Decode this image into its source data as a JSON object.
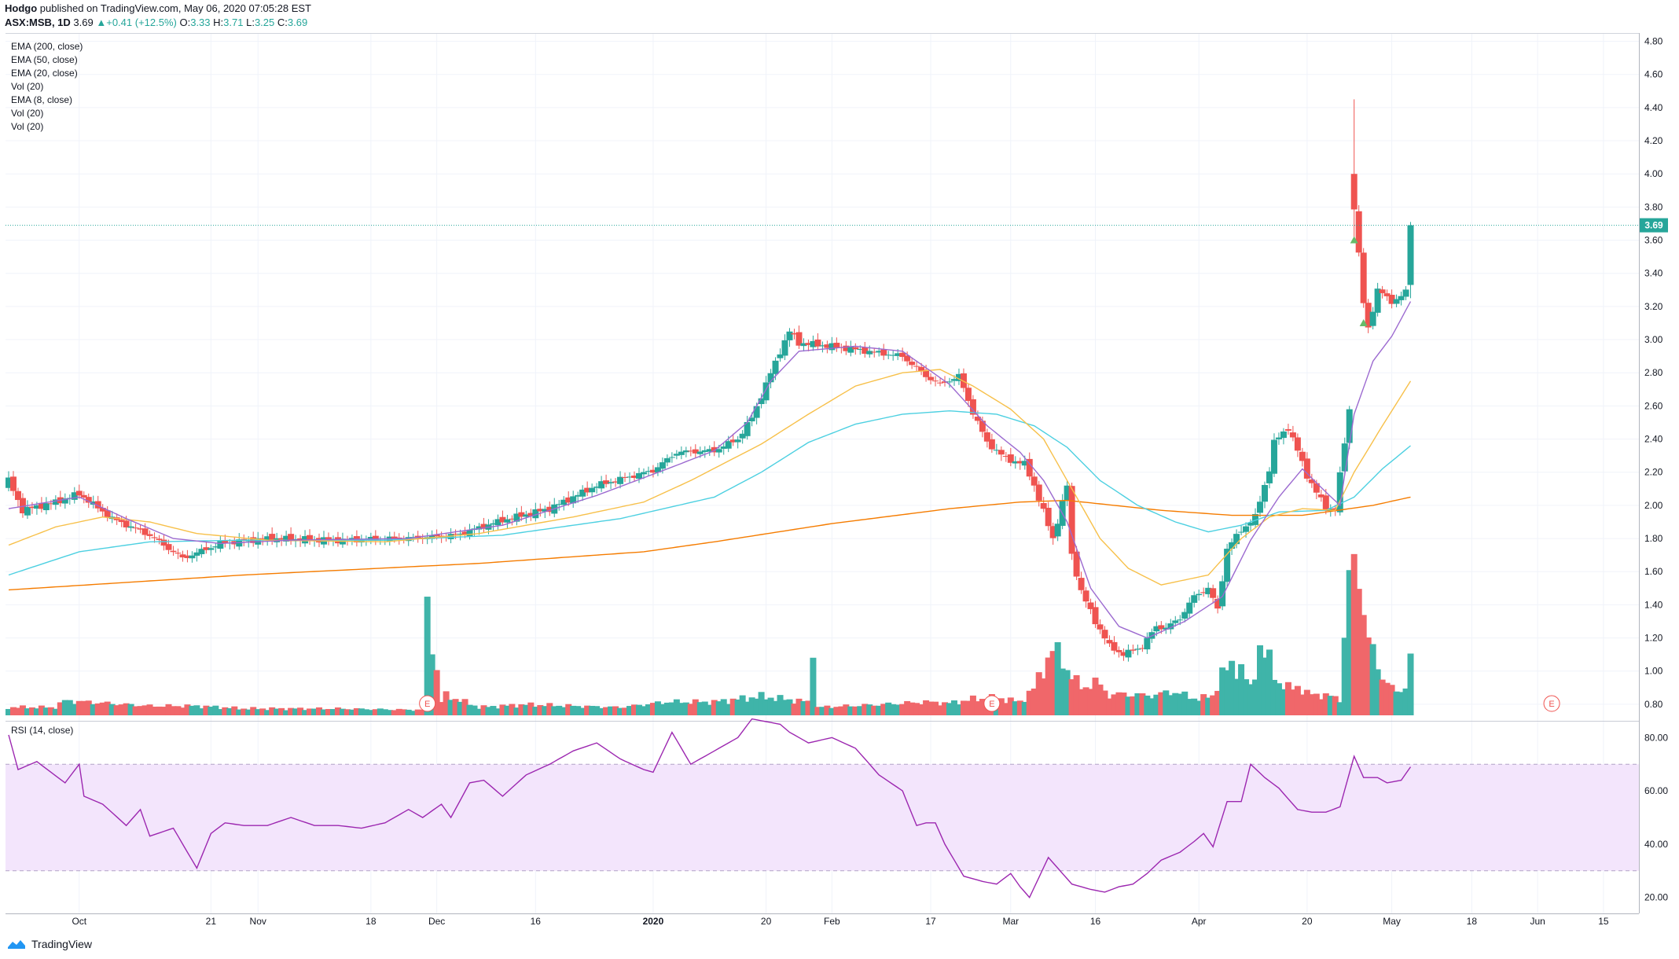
{
  "header": {
    "user": "Hodgo",
    "published": "published on TradingView.com, May 06, 2020 07:05:28 EST",
    "symbol": "ASX:MSB, 1D",
    "last": "3.69",
    "arrow": "▲",
    "change": "+0.41 (+12.5%)",
    "o_label": "O:",
    "o": "3.33",
    "h_label": "H:",
    "h": "3.71",
    "l_label": "L:",
    "l": "3.25",
    "c_label": "C:",
    "c": "3.69"
  },
  "legend": [
    "EMA (200, close)",
    "EMA (50, close)",
    "EMA (20, close)",
    "Vol (20)",
    "EMA (8, close)",
    "Vol (20)",
    "Vol (20)"
  ],
  "rsi_label": "RSI (14, close)",
  "footer": {
    "brand": "TradingView",
    "logo_icon": "tradingview-logo-icon"
  },
  "colors": {
    "up": "#26a69a",
    "down": "#ef5350",
    "ema200": "#f57c00",
    "ema50": "#4dd0e1",
    "ema20": "#f7c04a",
    "ema8": "#9c6ad0",
    "rsi": "#9c27b0",
    "rsi_band": "#f3e5fc",
    "last_price_line": "#26a69a"
  },
  "chart_data": {
    "type": "candlestick",
    "symbol": "ASX:MSB",
    "interval": "1D",
    "x_start": "2019-09-10",
    "price_axis": {
      "range": [
        0.7,
        4.85
      ],
      "ticks": [
        "0.80",
        "1.00",
        "1.20",
        "1.40",
        "1.60",
        "1.80",
        "2.00",
        "2.20",
        "2.40",
        "2.60",
        "2.80",
        "3.00",
        "3.20",
        "3.40",
        "3.60",
        "3.80",
        "4.00",
        "4.20",
        "4.40",
        "4.60",
        "4.80"
      ]
    },
    "last_price_label": "3.69",
    "x_ticks": [
      {
        "label": "Oct",
        "day": 15
      },
      {
        "label": "21",
        "day": 43
      },
      {
        "label": "Nov",
        "day": 53
      },
      {
        "label": "18",
        "day": 77
      },
      {
        "label": "Dec",
        "day": 91
      },
      {
        "label": "16",
        "day": 112
      },
      {
        "label": "2020",
        "day": 137
      },
      {
        "label": "20",
        "day": 161
      },
      {
        "label": "Feb",
        "day": 175
      },
      {
        "label": "17",
        "day": 196
      },
      {
        "label": "Mar",
        "day": 213
      },
      {
        "label": "16",
        "day": 231
      },
      {
        "label": "Apr",
        "day": 253
      },
      {
        "label": "20",
        "day": 276
      },
      {
        "label": "May",
        "day": 294
      },
      {
        "label": "18",
        "day": 311
      },
      {
        "label": "Jun",
        "day": 325
      },
      {
        "label": "15",
        "day": 339
      }
    ],
    "earnings_markers": [
      {
        "label": "E",
        "day": 89
      },
      {
        "label": "E",
        "day": 209
      },
      {
        "label": "E",
        "day": 328
      }
    ],
    "signal_markers": [
      {
        "day": 286,
        "price": 3.6
      },
      {
        "day": 288,
        "price": 3.1
      }
    ],
    "key_points": {
      "close": [
        [
          0,
          2.15
        ],
        [
          3,
          1.97
        ],
        [
          10,
          2.02
        ],
        [
          15,
          2.07
        ],
        [
          22,
          1.92
        ],
        [
          30,
          1.82
        ],
        [
          37,
          1.68
        ],
        [
          45,
          1.77
        ],
        [
          55,
          1.8
        ],
        [
          70,
          1.79
        ],
        [
          85,
          1.8
        ],
        [
          95,
          1.82
        ],
        [
          105,
          1.91
        ],
        [
          115,
          1.98
        ],
        [
          125,
          2.12
        ],
        [
          137,
          2.21
        ],
        [
          142,
          2.32
        ],
        [
          150,
          2.33
        ],
        [
          155,
          2.4
        ],
        [
          158,
          2.53
        ],
        [
          161,
          2.73
        ],
        [
          164,
          2.93
        ],
        [
          166,
          3.05
        ],
        [
          168,
          2.98
        ],
        [
          175,
          2.96
        ],
        [
          185,
          2.92
        ],
        [
          190,
          2.9
        ],
        [
          195,
          2.78
        ],
        [
          198,
          2.73
        ],
        [
          202,
          2.78
        ],
        [
          205,
          2.56
        ],
        [
          208,
          2.38
        ],
        [
          212,
          2.28
        ],
        [
          216,
          2.25
        ],
        [
          218,
          2.12
        ],
        [
          222,
          1.8
        ],
        [
          225,
          2.12
        ],
        [
          226,
          1.7
        ],
        [
          228,
          1.48
        ],
        [
          231,
          1.3
        ],
        [
          234,
          1.15
        ],
        [
          237,
          1.1
        ],
        [
          241,
          1.15
        ],
        [
          244,
          1.27
        ],
        [
          246,
          1.26
        ],
        [
          249,
          1.32
        ],
        [
          252,
          1.45
        ],
        [
          255,
          1.5
        ],
        [
          257,
          1.37
        ],
        [
          259,
          1.74
        ],
        [
          262,
          1.85
        ],
        [
          265,
          1.93
        ],
        [
          268,
          2.22
        ],
        [
          269,
          2.38
        ],
        [
          272,
          2.47
        ],
        [
          274,
          2.33
        ],
        [
          276,
          2.18
        ],
        [
          280,
          1.98
        ],
        [
          282,
          1.98
        ],
        [
          285,
          2.58
        ],
        [
          286,
          3.8
        ],
        [
          288,
          3.22
        ],
        [
          289,
          3.07
        ],
        [
          291,
          3.3
        ],
        [
          294,
          3.23
        ],
        [
          296,
          3.26
        ],
        [
          297,
          3.29
        ],
        [
          298,
          3.69
        ]
      ],
      "volume": [
        [
          0,
          0.06
        ],
        [
          10,
          0.06
        ],
        [
          12,
          0.11
        ],
        [
          30,
          0.07
        ],
        [
          40,
          0.07
        ],
        [
          50,
          0.05
        ],
        [
          70,
          0.05
        ],
        [
          88,
          0.04
        ],
        [
          89,
          0.8
        ],
        [
          92,
          0.1
        ],
        [
          93,
          0.15
        ],
        [
          100,
          0.06
        ],
        [
          110,
          0.08
        ],
        [
          120,
          0.07
        ],
        [
          130,
          0.06
        ],
        [
          140,
          0.1
        ],
        [
          150,
          0.1
        ],
        [
          160,
          0.14
        ],
        [
          170,
          0.1
        ],
        [
          171,
          0.55
        ],
        [
          172,
          0.06
        ],
        [
          185,
          0.08
        ],
        [
          195,
          0.1
        ],
        [
          200,
          0.09
        ],
        [
          205,
          0.12
        ],
        [
          210,
          0.13
        ],
        [
          215,
          0.1
        ],
        [
          218,
          0.2
        ],
        [
          220,
          0.35
        ],
        [
          222,
          0.5
        ],
        [
          225,
          0.35
        ],
        [
          228,
          0.2
        ],
        [
          231,
          0.25
        ],
        [
          234,
          0.15
        ],
        [
          237,
          0.16
        ],
        [
          241,
          0.15
        ],
        [
          244,
          0.15
        ],
        [
          247,
          0.18
        ],
        [
          250,
          0.15
        ],
        [
          253,
          0.12
        ],
        [
          256,
          0.15
        ],
        [
          258,
          0.3
        ],
        [
          260,
          0.38
        ],
        [
          262,
          0.34
        ],
        [
          264,
          0.2
        ],
        [
          266,
          0.5
        ],
        [
          268,
          0.4
        ],
        [
          270,
          0.24
        ],
        [
          272,
          0.2
        ],
        [
          274,
          0.22
        ],
        [
          276,
          0.16
        ],
        [
          280,
          0.15
        ],
        [
          283,
          0.12
        ],
        [
          285,
          1.05
        ],
        [
          287,
          1.05
        ],
        [
          289,
          0.59
        ],
        [
          291,
          0.34
        ],
        [
          293,
          0.26
        ],
        [
          295,
          0.16
        ],
        [
          297,
          0.22
        ],
        [
          298,
          0.47
        ]
      ],
      "rsi": [
        [
          0,
          81
        ],
        [
          2,
          68
        ],
        [
          6,
          71
        ],
        [
          12,
          63
        ],
        [
          15,
          70
        ],
        [
          16,
          58
        ],
        [
          20,
          55
        ],
        [
          25,
          47
        ],
        [
          28,
          53
        ],
        [
          30,
          43
        ],
        [
          35,
          46
        ],
        [
          40,
          31
        ],
        [
          43,
          44
        ],
        [
          46,
          48
        ],
        [
          50,
          47
        ],
        [
          55,
          47
        ],
        [
          60,
          50
        ],
        [
          65,
          47
        ],
        [
          70,
          47
        ],
        [
          75,
          46
        ],
        [
          80,
          48
        ],
        [
          85,
          53
        ],
        [
          88,
          50
        ],
        [
          92,
          55
        ],
        [
          94,
          50
        ],
        [
          98,
          63
        ],
        [
          101,
          64
        ],
        [
          105,
          58
        ],
        [
          110,
          66
        ],
        [
          115,
          70
        ],
        [
          120,
          75
        ],
        [
          125,
          78
        ],
        [
          130,
          72
        ],
        [
          135,
          68
        ],
        [
          137,
          67
        ],
        [
          141,
          82
        ],
        [
          145,
          70
        ],
        [
          150,
          75
        ],
        [
          155,
          80
        ],
        [
          158,
          87
        ],
        [
          161,
          86
        ],
        [
          164,
          85
        ],
        [
          166,
          82
        ],
        [
          170,
          78
        ],
        [
          175,
          80
        ],
        [
          180,
          76
        ],
        [
          185,
          66
        ],
        [
          190,
          60
        ],
        [
          193,
          47
        ],
        [
          195,
          48
        ],
        [
          197,
          48
        ],
        [
          199,
          40
        ],
        [
          203,
          28
        ],
        [
          207,
          26
        ],
        [
          210,
          25
        ],
        [
          213,
          29
        ],
        [
          215,
          24
        ],
        [
          217,
          20
        ],
        [
          221,
          35
        ],
        [
          224,
          29
        ],
        [
          226,
          25
        ],
        [
          230,
          23
        ],
        [
          233,
          22
        ],
        [
          236,
          24
        ],
        [
          239,
          25
        ],
        [
          242,
          29
        ],
        [
          245,
          34
        ],
        [
          249,
          37
        ],
        [
          252,
          41
        ],
        [
          254,
          44
        ],
        [
          256,
          39
        ],
        [
          259,
          56
        ],
        [
          262,
          56
        ],
        [
          264,
          70
        ],
        [
          267,
          65
        ],
        [
          270,
          61
        ],
        [
          274,
          53
        ],
        [
          277,
          52
        ],
        [
          280,
          52
        ],
        [
          283,
          54
        ],
        [
          286,
          73
        ],
        [
          288,
          65
        ],
        [
          291,
          65
        ],
        [
          293,
          63
        ],
        [
          296,
          64
        ],
        [
          298,
          69
        ]
      ],
      "ema8": [
        [
          0,
          1.98
        ],
        [
          15,
          2.05
        ],
        [
          25,
          1.92
        ],
        [
          35,
          1.8
        ],
        [
          45,
          1.77
        ],
        [
          60,
          1.79
        ],
        [
          85,
          1.8
        ],
        [
          105,
          1.88
        ],
        [
          125,
          2.06
        ],
        [
          140,
          2.22
        ],
        [
          150,
          2.33
        ],
        [
          157,
          2.5
        ],
        [
          162,
          2.75
        ],
        [
          168,
          2.93
        ],
        [
          180,
          2.96
        ],
        [
          190,
          2.93
        ],
        [
          200,
          2.73
        ],
        [
          208,
          2.48
        ],
        [
          215,
          2.32
        ],
        [
          220,
          2.15
        ],
        [
          225,
          1.9
        ],
        [
          230,
          1.5
        ],
        [
          236,
          1.27
        ],
        [
          242,
          1.2
        ],
        [
          250,
          1.3
        ],
        [
          258,
          1.45
        ],
        [
          264,
          1.79
        ],
        [
          270,
          2.05
        ],
        [
          275,
          2.22
        ],
        [
          280,
          2.08
        ],
        [
          283,
          2.0
        ],
        [
          286,
          2.55
        ],
        [
          290,
          2.87
        ],
        [
          294,
          3.02
        ],
        [
          298,
          3.23
        ]
      ],
      "ema20": [
        [
          0,
          1.76
        ],
        [
          10,
          1.87
        ],
        [
          20,
          1.93
        ],
        [
          30,
          1.9
        ],
        [
          40,
          1.83
        ],
        [
          55,
          1.79
        ],
        [
          80,
          1.78
        ],
        [
          100,
          1.83
        ],
        [
          120,
          1.93
        ],
        [
          135,
          2.02
        ],
        [
          145,
          2.15
        ],
        [
          160,
          2.37
        ],
        [
          170,
          2.55
        ],
        [
          180,
          2.72
        ],
        [
          190,
          2.8
        ],
        [
          198,
          2.82
        ],
        [
          205,
          2.72
        ],
        [
          213,
          2.58
        ],
        [
          220,
          2.4
        ],
        [
          226,
          2.1
        ],
        [
          232,
          1.8
        ],
        [
          238,
          1.62
        ],
        [
          245,
          1.52
        ],
        [
          255,
          1.58
        ],
        [
          262,
          1.8
        ],
        [
          268,
          1.93
        ],
        [
          275,
          1.98
        ],
        [
          282,
          1.97
        ],
        [
          286,
          2.2
        ],
        [
          292,
          2.48
        ],
        [
          298,
          2.75
        ]
      ],
      "ema50": [
        [
          0,
          1.58
        ],
        [
          15,
          1.72
        ],
        [
          30,
          1.78
        ],
        [
          50,
          1.79
        ],
        [
          80,
          1.79
        ],
        [
          105,
          1.82
        ],
        [
          130,
          1.92
        ],
        [
          150,
          2.05
        ],
        [
          160,
          2.2
        ],
        [
          170,
          2.38
        ],
        [
          180,
          2.49
        ],
        [
          190,
          2.55
        ],
        [
          200,
          2.57
        ],
        [
          210,
          2.55
        ],
        [
          218,
          2.48
        ],
        [
          225,
          2.35
        ],
        [
          232,
          2.15
        ],
        [
          240,
          2.0
        ],
        [
          248,
          1.9
        ],
        [
          255,
          1.84
        ],
        [
          262,
          1.88
        ],
        [
          270,
          1.96
        ],
        [
          280,
          1.97
        ],
        [
          286,
          2.05
        ],
        [
          292,
          2.22
        ],
        [
          298,
          2.36
        ]
      ],
      "ema200": [
        [
          0,
          1.49
        ],
        [
          50,
          1.58
        ],
        [
          100,
          1.65
        ],
        [
          135,
          1.72
        ],
        [
          150,
          1.78
        ],
        [
          175,
          1.89
        ],
        [
          200,
          1.98
        ],
        [
          215,
          2.02
        ],
        [
          225,
          2.03
        ],
        [
          245,
          1.97
        ],
        [
          260,
          1.94
        ],
        [
          275,
          1.94
        ],
        [
          290,
          2.0
        ],
        [
          298,
          2.05
        ]
      ]
    },
    "rsi_axis": {
      "range": [
        14,
        86
      ],
      "ticks": [
        "20.00",
        "40.00",
        "60.00",
        "80.00"
      ],
      "overbought": 70,
      "oversold": 30
    }
  }
}
